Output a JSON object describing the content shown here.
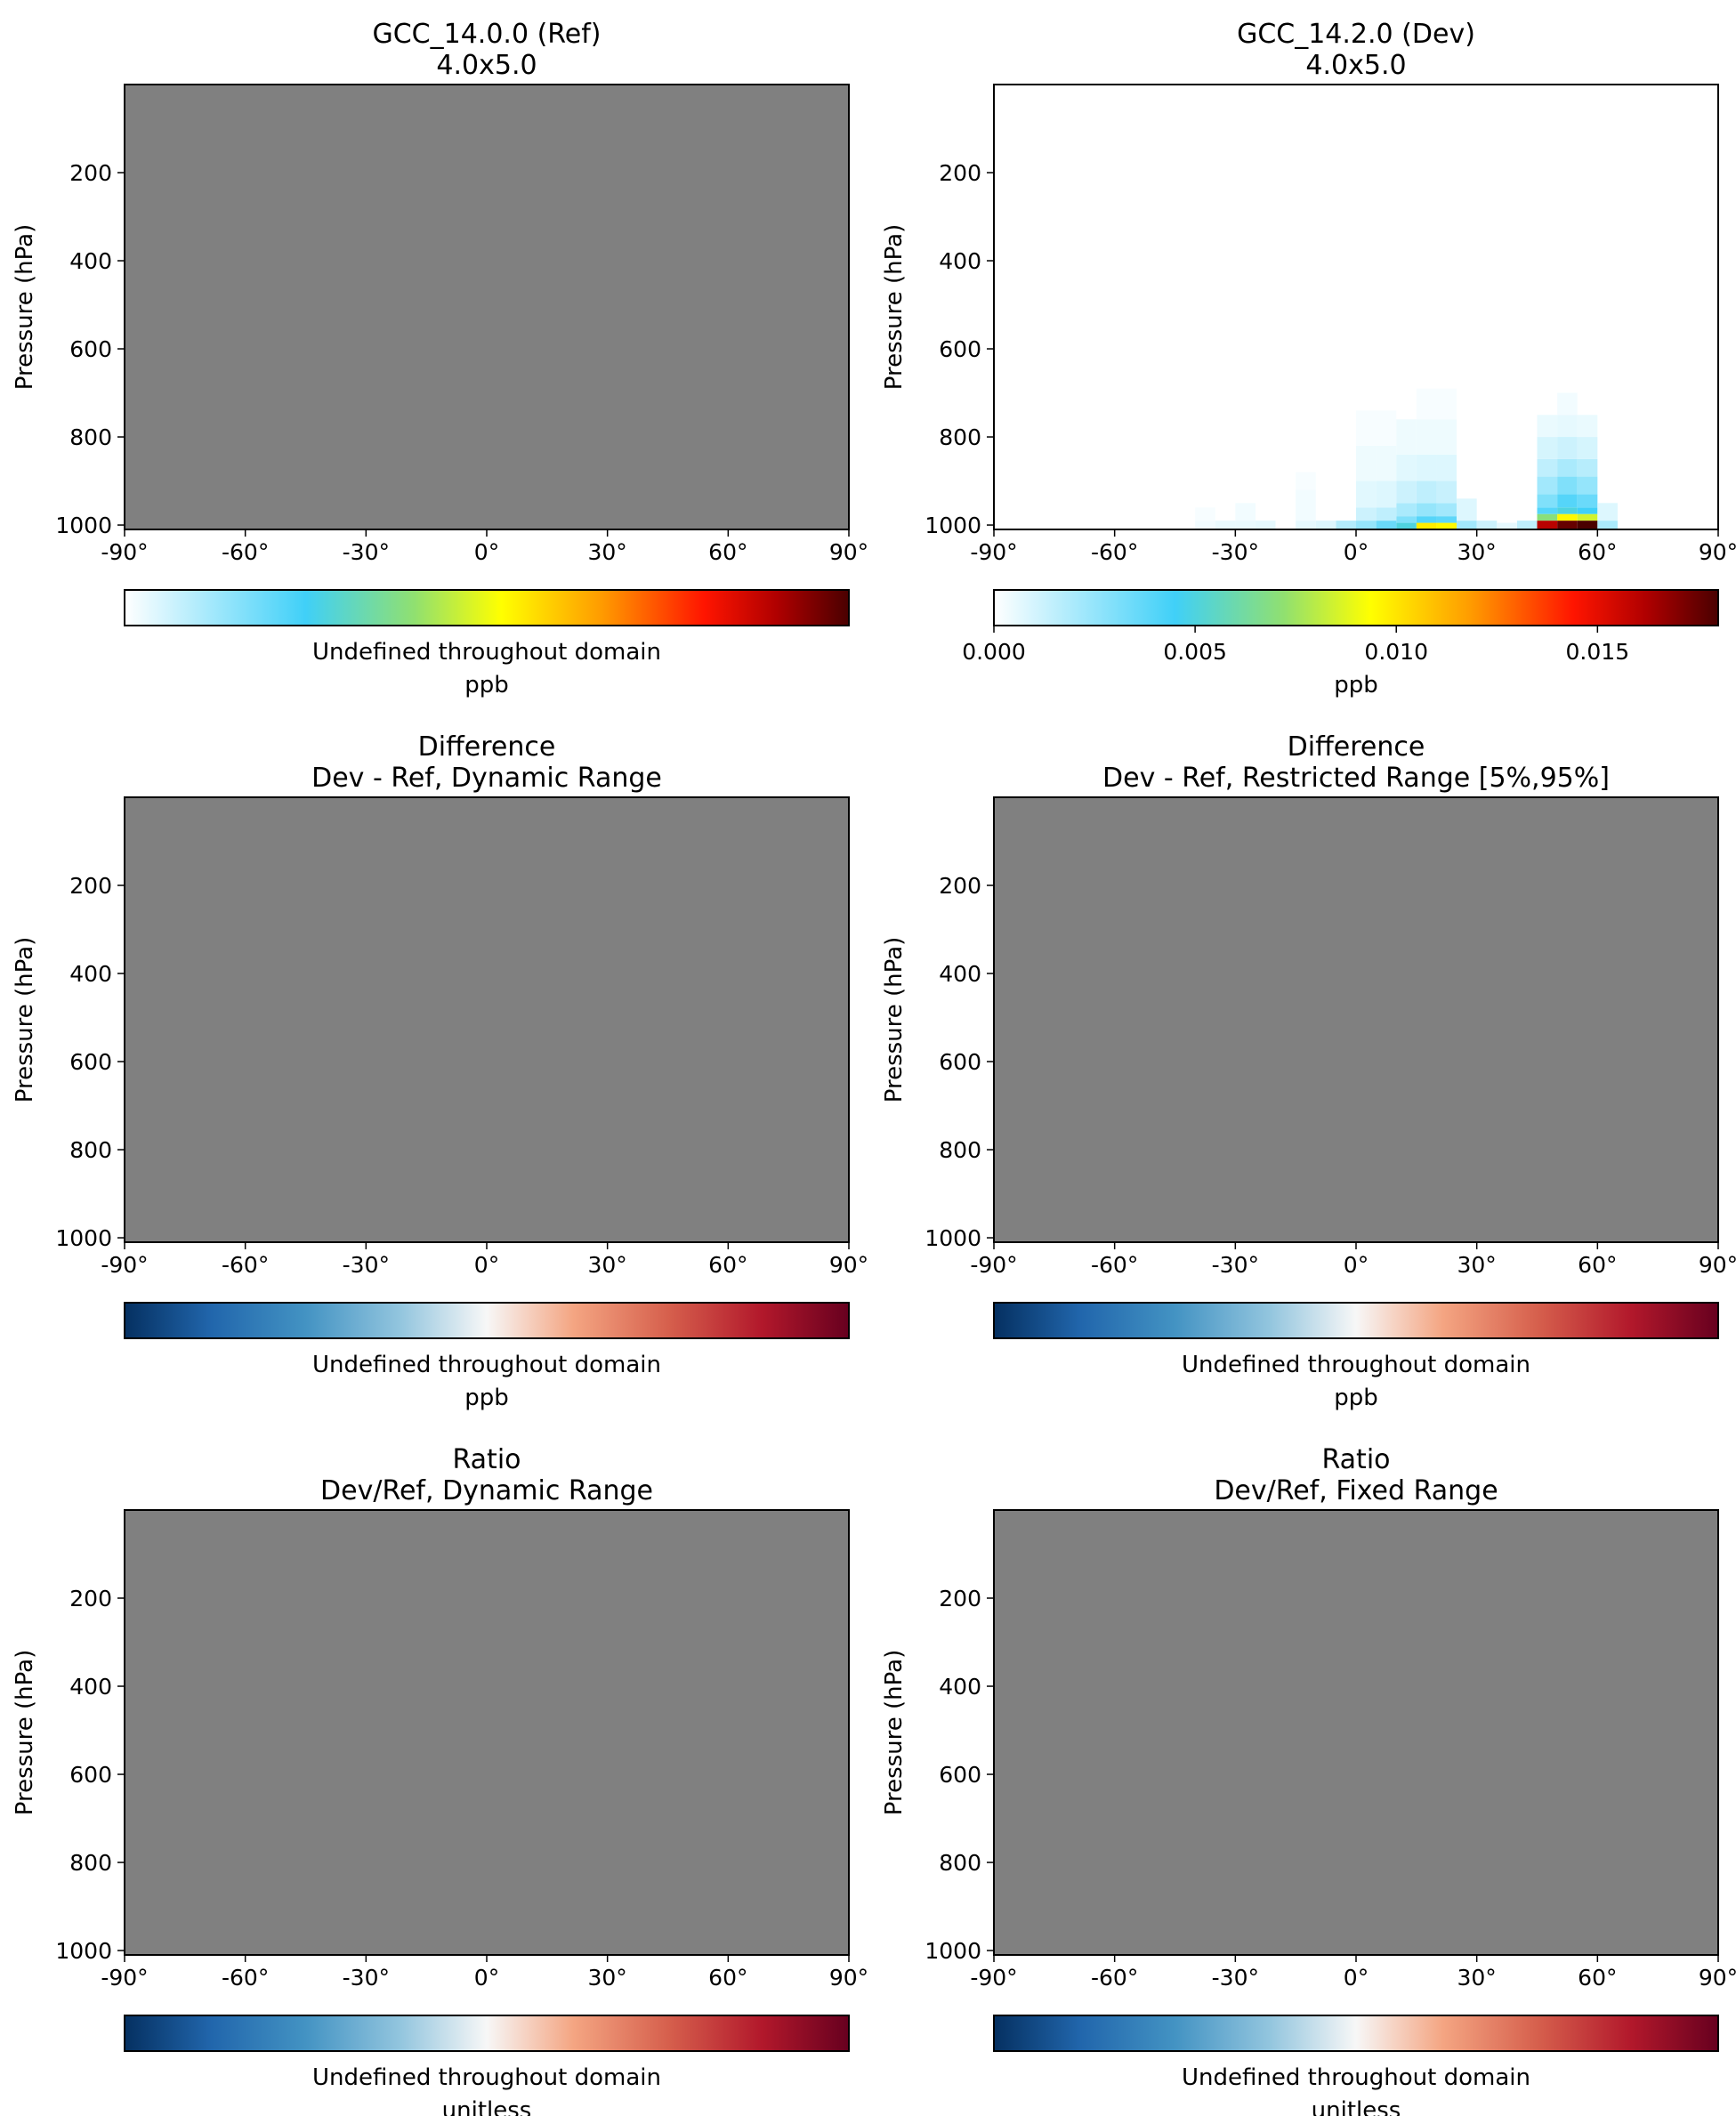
{
  "chart_data": [
    {
      "type": "heatmap",
      "title": "GCC_14.0.0 (Ref)",
      "subtitle": "4.0x5.0",
      "ylabel": "Pressure (hPa)",
      "xticks": [
        "-90°",
        "-60°",
        "-30°",
        "0°",
        "30°",
        "60°",
        "90°"
      ],
      "yticks": [
        "200",
        "400",
        "600",
        "800",
        "1000"
      ],
      "xlim": [
        -90,
        90
      ],
      "ylim": [
        1010,
        0
      ],
      "colormap": "WhGrYlRd",
      "colorbar_ticks": [],
      "colorbar_label": "Undefined throughout domain",
      "units": "ppb",
      "field": "undefined",
      "fill_color": "#808080"
    },
    {
      "type": "heatmap",
      "title": "GCC_14.2.0 (Dev)",
      "subtitle": "4.0x5.0",
      "ylabel": "Pressure (hPa)",
      "xticks": [
        "-90°",
        "-60°",
        "-30°",
        "0°",
        "30°",
        "60°",
        "90°"
      ],
      "yticks": [
        "200",
        "400",
        "600",
        "800",
        "1000"
      ],
      "xlim": [
        -90,
        90
      ],
      "ylim": [
        1010,
        0
      ],
      "colormap": "WhGrYlRd",
      "vmin": 0,
      "vmax": 0.018,
      "colorbar_ticks": [
        "0.000",
        "0.005",
        "0.010",
        "0.015"
      ],
      "colorbar_label": "",
      "units": "ppb",
      "field": "values",
      "cells": [
        {
          "lat": 52.5,
          "p0": 1010,
          "p1": 990,
          "v": 0.0175
        },
        {
          "lat": 57.5,
          "p0": 1010,
          "p1": 990,
          "v": 0.018
        },
        {
          "lat": 47.5,
          "p0": 1010,
          "p1": 990,
          "v": 0.016
        },
        {
          "lat": 52.5,
          "p0": 990,
          "p1": 975,
          "v": 0.0095
        },
        {
          "lat": 57.5,
          "p0": 990,
          "p1": 975,
          "v": 0.0085
        },
        {
          "lat": 47.5,
          "p0": 990,
          "p1": 975,
          "v": 0.007
        },
        {
          "lat": 52.5,
          "p0": 975,
          "p1": 960,
          "v": 0.005
        },
        {
          "lat": 57.5,
          "p0": 975,
          "p1": 960,
          "v": 0.0045
        },
        {
          "lat": 47.5,
          "p0": 975,
          "p1": 960,
          "v": 0.004
        },
        {
          "lat": 52.5,
          "p0": 960,
          "p1": 930,
          "v": 0.004
        },
        {
          "lat": 57.5,
          "p0": 960,
          "p1": 930,
          "v": 0.0035
        },
        {
          "lat": 47.5,
          "p0": 960,
          "p1": 930,
          "v": 0.003
        },
        {
          "lat": 52.5,
          "p0": 930,
          "p1": 890,
          "v": 0.003
        },
        {
          "lat": 57.5,
          "p0": 930,
          "p1": 890,
          "v": 0.0025
        },
        {
          "lat": 47.5,
          "p0": 930,
          "p1": 890,
          "v": 0.0022
        },
        {
          "lat": 52.5,
          "p0": 890,
          "p1": 850,
          "v": 0.002
        },
        {
          "lat": 57.5,
          "p0": 890,
          "p1": 850,
          "v": 0.0017
        },
        {
          "lat": 47.5,
          "p0": 890,
          "p1": 850,
          "v": 0.0015
        },
        {
          "lat": 52.5,
          "p0": 850,
          "p1": 800,
          "v": 0.0012
        },
        {
          "lat": 57.5,
          "p0": 850,
          "p1": 800,
          "v": 0.001
        },
        {
          "lat": 47.5,
          "p0": 850,
          "p1": 800,
          "v": 0.001
        },
        {
          "lat": 52.5,
          "p0": 800,
          "p1": 750,
          "v": 0.0006
        },
        {
          "lat": 57.5,
          "p0": 800,
          "p1": 750,
          "v": 0.0005
        },
        {
          "lat": 47.5,
          "p0": 800,
          "p1": 750,
          "v": 0.0005
        },
        {
          "lat": 52.5,
          "p0": 750,
          "p1": 700,
          "v": 0.0003
        },
        {
          "lat": 62.5,
          "p0": 1010,
          "p1": 990,
          "v": 0.002
        },
        {
          "lat": 62.5,
          "p0": 990,
          "p1": 950,
          "v": 0.0008
        },
        {
          "lat": 42.5,
          "p0": 1010,
          "p1": 990,
          "v": 0.0015
        },
        {
          "lat": 17.5,
          "p0": 1010,
          "p1": 995,
          "v": 0.0098
        },
        {
          "lat": 22.5,
          "p0": 1010,
          "p1": 995,
          "v": 0.0095
        },
        {
          "lat": 12.5,
          "p0": 1010,
          "p1": 995,
          "v": 0.005
        },
        {
          "lat": 17.5,
          "p0": 995,
          "p1": 980,
          "v": 0.004
        },
        {
          "lat": 22.5,
          "p0": 995,
          "p1": 980,
          "v": 0.0038
        },
        {
          "lat": 12.5,
          "p0": 995,
          "p1": 980,
          "v": 0.003
        },
        {
          "lat": 17.5,
          "p0": 980,
          "p1": 950,
          "v": 0.0025
        },
        {
          "lat": 22.5,
          "p0": 980,
          "p1": 950,
          "v": 0.0022
        },
        {
          "lat": 12.5,
          "p0": 980,
          "p1": 950,
          "v": 0.002
        },
        {
          "lat": 17.5,
          "p0": 950,
          "p1": 900,
          "v": 0.0015
        },
        {
          "lat": 22.5,
          "p0": 950,
          "p1": 900,
          "v": 0.0013
        },
        {
          "lat": 12.5,
          "p0": 950,
          "p1": 900,
          "v": 0.0012
        },
        {
          "lat": 17.5,
          "p0": 900,
          "p1": 840,
          "v": 0.0008
        },
        {
          "lat": 22.5,
          "p0": 900,
          "p1": 840,
          "v": 0.0008
        },
        {
          "lat": 12.5,
          "p0": 900,
          "p1": 840,
          "v": 0.0007
        },
        {
          "lat": 17.5,
          "p0": 840,
          "p1": 760,
          "v": 0.0004
        },
        {
          "lat": 22.5,
          "p0": 840,
          "p1": 760,
          "v": 0.0004
        },
        {
          "lat": 12.5,
          "p0": 840,
          "p1": 760,
          "v": 0.0004
        },
        {
          "lat": 17.5,
          "p0": 760,
          "p1": 690,
          "v": 0.0002
        },
        {
          "lat": 22.5,
          "p0": 760,
          "p1": 690,
          "v": 0.0002
        },
        {
          "lat": 7.5,
          "p0": 1010,
          "p1": 990,
          "v": 0.0035
        },
        {
          "lat": 2.5,
          "p0": 1010,
          "p1": 990,
          "v": 0.0025
        },
        {
          "lat": -2.5,
          "p0": 1010,
          "p1": 990,
          "v": 0.0018
        },
        {
          "lat": 7.5,
          "p0": 990,
          "p1": 960,
          "v": 0.0015
        },
        {
          "lat": 2.5,
          "p0": 990,
          "p1": 960,
          "v": 0.0012
        },
        {
          "lat": 7.5,
          "p0": 960,
          "p1": 900,
          "v": 0.0008
        },
        {
          "lat": 2.5,
          "p0": 960,
          "p1": 900,
          "v": 0.0007
        },
        {
          "lat": 7.5,
          "p0": 900,
          "p1": 820,
          "v": 0.0004
        },
        {
          "lat": 2.5,
          "p0": 900,
          "p1": 820,
          "v": 0.0004
        },
        {
          "lat": 7.5,
          "p0": 820,
          "p1": 740,
          "v": 0.0002
        },
        {
          "lat": 2.5,
          "p0": 820,
          "p1": 740,
          "v": 0.0002
        },
        {
          "lat": 27.5,
          "p0": 1010,
          "p1": 990,
          "v": 0.0022
        },
        {
          "lat": 32.5,
          "p0": 1010,
          "p1": 990,
          "v": 0.0012
        },
        {
          "lat": 27.5,
          "p0": 990,
          "p1": 940,
          "v": 0.0008
        },
        {
          "lat": 37.5,
          "p0": 1010,
          "p1": 995,
          "v": 0.0006
        },
        {
          "lat": -7.5,
          "p0": 1010,
          "p1": 990,
          "v": 0.0008
        },
        {
          "lat": -12.5,
          "p0": 1010,
          "p1": 990,
          "v": 0.0006
        },
        {
          "lat": -12.5,
          "p0": 990,
          "p1": 920,
          "v": 0.0003
        },
        {
          "lat": -12.5,
          "p0": 920,
          "p1": 880,
          "v": 0.0002
        },
        {
          "lat": -22.5,
          "p0": 1010,
          "p1": 990,
          "v": 0.0006
        },
        {
          "lat": -27.5,
          "p0": 1010,
          "p1": 990,
          "v": 0.0005
        },
        {
          "lat": -32.5,
          "p0": 1010,
          "p1": 990,
          "v": 0.0005
        },
        {
          "lat": -27.5,
          "p0": 990,
          "p1": 950,
          "v": 0.0003
        },
        {
          "lat": -37.5,
          "p0": 1010,
          "p1": 990,
          "v": 0.0003
        },
        {
          "lat": -37.5,
          "p0": 990,
          "p1": 960,
          "v": 0.0002
        }
      ]
    },
    {
      "type": "heatmap",
      "title": "Difference",
      "subtitle": "Dev - Ref, Dynamic Range",
      "ylabel": "Pressure (hPa)",
      "xticks": [
        "-90°",
        "-60°",
        "-30°",
        "0°",
        "30°",
        "60°",
        "90°"
      ],
      "yticks": [
        "200",
        "400",
        "600",
        "800",
        "1000"
      ],
      "xlim": [
        -90,
        90
      ],
      "ylim": [
        1010,
        0
      ],
      "colormap": "RdBu_r",
      "colorbar_ticks": [],
      "colorbar_label": "Undefined throughout domain",
      "units": "ppb",
      "field": "undefined",
      "fill_color": "#808080"
    },
    {
      "type": "heatmap",
      "title": "Difference",
      "subtitle": "Dev - Ref, Restricted Range [5%,95%]",
      "ylabel": "Pressure (hPa)",
      "xticks": [
        "-90°",
        "-60°",
        "-30°",
        "0°",
        "30°",
        "60°",
        "90°"
      ],
      "yticks": [
        "200",
        "400",
        "600",
        "800",
        "1000"
      ],
      "xlim": [
        -90,
        90
      ],
      "ylim": [
        1010,
        0
      ],
      "colormap": "RdBu_r",
      "colorbar_ticks": [],
      "colorbar_label": "Undefined throughout domain",
      "units": "ppb",
      "field": "undefined",
      "fill_color": "#808080"
    },
    {
      "type": "heatmap",
      "title": "Ratio",
      "subtitle": "Dev/Ref, Dynamic Range",
      "ylabel": "Pressure (hPa)",
      "xticks": [
        "-90°",
        "-60°",
        "-30°",
        "0°",
        "30°",
        "60°",
        "90°"
      ],
      "yticks": [
        "200",
        "400",
        "600",
        "800",
        "1000"
      ],
      "xlim": [
        -90,
        90
      ],
      "ylim": [
        1010,
        0
      ],
      "colormap": "RdBu_r",
      "colorbar_ticks": [],
      "colorbar_label": "Undefined throughout domain",
      "units": "unitless",
      "field": "undefined",
      "fill_color": "#808080"
    },
    {
      "type": "heatmap",
      "title": "Ratio",
      "subtitle": "Dev/Ref, Fixed Range",
      "ylabel": "Pressure (hPa)",
      "xticks": [
        "-90°",
        "-60°",
        "-30°",
        "0°",
        "30°",
        "60°",
        "90°"
      ],
      "yticks": [
        "200",
        "400",
        "600",
        "800",
        "1000"
      ],
      "xlim": [
        -90,
        90
      ],
      "ylim": [
        1010,
        0
      ],
      "colormap": "RdBu_r",
      "colorbar_ticks": [],
      "colorbar_label": "Undefined throughout domain",
      "units": "unitless",
      "field": "undefined",
      "fill_color": "#808080"
    }
  ]
}
